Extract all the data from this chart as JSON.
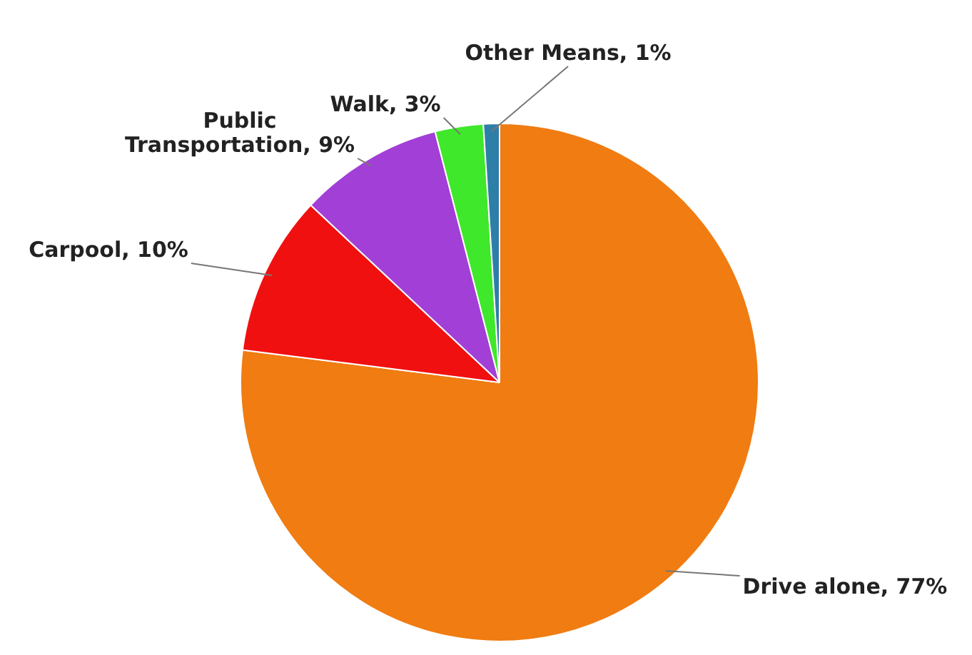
{
  "chart_data": {
    "type": "pie",
    "categories": [
      "Drive alone",
      "Carpool",
      "Public Transportation",
      "Walk",
      "Other Means"
    ],
    "values": [
      77,
      10,
      9,
      3,
      1
    ],
    "value_labels": [
      "77%",
      "10%",
      "9%",
      "3%",
      "1%"
    ],
    "colors": [
      "#f07c12",
      "#f01010",
      "#a23fd6",
      "#3fe82a",
      "#2e7fa8"
    ],
    "legend": false
  }
}
